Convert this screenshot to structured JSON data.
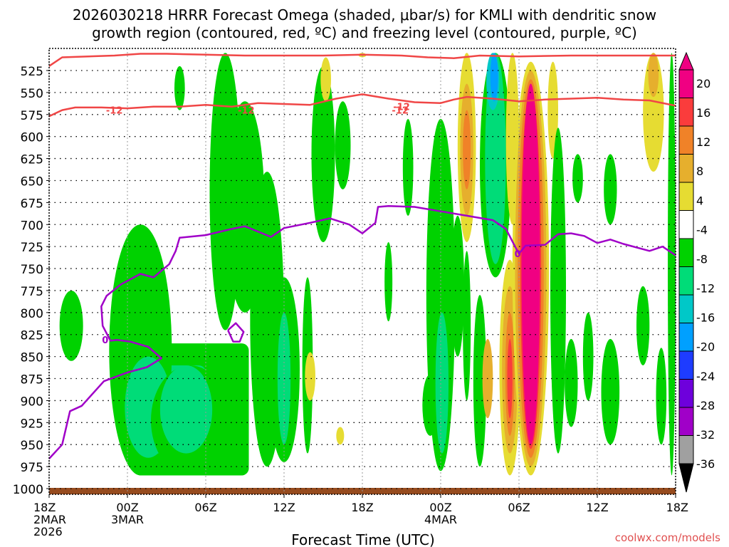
{
  "chart_data": {
    "type": "heatmap",
    "title_line1": "2026030218 HRRR Forecast Omega (shaded, μbar/s) for KMLI with dendritic snow",
    "title_line2": "growth region (contoured, red, ºC) and freezing level (contoured, purple, ºC)",
    "xlabel": "Forecast Time (UTC)",
    "credit": "coolwx.com/models",
    "xlim_hours": [
      0,
      48
    ],
    "ylim_hpa": [
      1010,
      505
    ],
    "y_ticks": [
      525,
      550,
      575,
      600,
      625,
      650,
      675,
      700,
      725,
      750,
      775,
      800,
      825,
      850,
      875,
      900,
      925,
      950,
      975,
      1000
    ],
    "x_ticks": [
      {
        "hour": 0,
        "lines": [
          "18Z",
          "2MAR",
          "2026"
        ]
      },
      {
        "hour": 6,
        "lines": [
          "00Z",
          "3MAR"
        ]
      },
      {
        "hour": 12,
        "lines": [
          "06Z"
        ]
      },
      {
        "hour": 18,
        "lines": [
          "12Z"
        ]
      },
      {
        "hour": 24,
        "lines": [
          "18Z"
        ]
      },
      {
        "hour": 30,
        "lines": [
          "00Z",
          "4MAR"
        ]
      },
      {
        "hour": 36,
        "lines": [
          "06Z"
        ]
      },
      {
        "hour": 42,
        "lines": [
          "12Z"
        ]
      },
      {
        "hour": 48,
        "lines": [
          "18Z"
        ]
      }
    ],
    "colorbar": {
      "levels": [
        -36,
        -32,
        -28,
        -24,
        -20,
        -16,
        -12,
        -8,
        -4,
        4,
        8,
        12,
        16,
        20
      ],
      "labels": [
        "20",
        "16",
        "12",
        "8",
        "4",
        "-4",
        "-8",
        "-12",
        "-16",
        "-20",
        "-24",
        "-28",
        "-32",
        "-36"
      ],
      "colors": [
        "#a0a0a0",
        "#a000c8",
        "#6e00dc",
        "#1e3cff",
        "#00a0ff",
        "#00c8c8",
        "#00dc78",
        "#00d200",
        "#ffffff",
        "#e6dc32",
        "#e6af2d",
        "#f08228",
        "#fa3c3c",
        "#f00082"
      ]
    },
    "snow_growth_contour": {
      "label": "-12",
      "points": [
        [
          0,
          577
        ],
        [
          1,
          570
        ],
        [
          2,
          567
        ],
        [
          4,
          567
        ],
        [
          6,
          568
        ],
        [
          8,
          566
        ],
        [
          10,
          566
        ],
        [
          12,
          564
        ],
        [
          14,
          566
        ],
        [
          16,
          562
        ],
        [
          18,
          563
        ],
        [
          20,
          564
        ],
        [
          22,
          557
        ],
        [
          24,
          552
        ],
        [
          26,
          557
        ],
        [
          28,
          561
        ],
        [
          30,
          562
        ],
        [
          31,
          558
        ],
        [
          32,
          555
        ],
        [
          34,
          557
        ],
        [
          36,
          560
        ],
        [
          38,
          558
        ],
        [
          40,
          557
        ],
        [
          42,
          556
        ],
        [
          44,
          558
        ],
        [
          46,
          559
        ],
        [
          48,
          565
        ]
      ]
    },
    "snow_growth_top_contour": {
      "points": [
        [
          0,
          520
        ],
        [
          1,
          510
        ],
        [
          3,
          509
        ],
        [
          5,
          508
        ],
        [
          7,
          506
        ],
        [
          9,
          506
        ],
        [
          12,
          507
        ],
        [
          15,
          508
        ],
        [
          18,
          508
        ],
        [
          21,
          508
        ],
        [
          24,
          507
        ],
        [
          27,
          508
        ],
        [
          29,
          510
        ],
        [
          31,
          511
        ],
        [
          33,
          508
        ],
        [
          36,
          509
        ],
        [
          40,
          508
        ],
        [
          44,
          508
        ],
        [
          48,
          508
        ]
      ]
    },
    "freezing_level_contour": {
      "label": "0",
      "points": [
        [
          0,
          966
        ],
        [
          1,
          950
        ],
        [
          1.6,
          912
        ],
        [
          2.5,
          906
        ],
        [
          4.2,
          878
        ],
        [
          6,
          868
        ],
        [
          7.5,
          862
        ],
        [
          8.6,
          852
        ],
        [
          7.6,
          839
        ],
        [
          6.2,
          833
        ],
        [
          5.2,
          831
        ],
        [
          4.7,
          832
        ],
        [
          4.1,
          815
        ],
        [
          4,
          793
        ],
        [
          4.4,
          781
        ],
        [
          5.5,
          768
        ],
        [
          7,
          756
        ],
        [
          8,
          760
        ],
        [
          9.2,
          745
        ],
        [
          9.7,
          730
        ],
        [
          10,
          715
        ],
        [
          12,
          712
        ],
        [
          14,
          705
        ],
        [
          15,
          702
        ],
        [
          16,
          708
        ],
        [
          17,
          714
        ],
        [
          18,
          704
        ],
        [
          20,
          698
        ],
        [
          21.5,
          693
        ],
        [
          23,
          700
        ],
        [
          24,
          710
        ],
        [
          25,
          698
        ],
        [
          25.2,
          680
        ],
        [
          26,
          679
        ],
        [
          28,
          680
        ],
        [
          30,
          685
        ],
        [
          32,
          690
        ],
        [
          34,
          695
        ],
        [
          35,
          705
        ],
        [
          35.7,
          725
        ],
        [
          36,
          733
        ],
        [
          36.5,
          724
        ],
        [
          38,
          723
        ],
        [
          39,
          711
        ],
        [
          40,
          710
        ],
        [
          41,
          713
        ],
        [
          42,
          721
        ],
        [
          43,
          717
        ],
        [
          44,
          722
        ],
        [
          46,
          730
        ],
        [
          47,
          725
        ],
        [
          48,
          735
        ]
      ]
    },
    "freezing_small_loop": {
      "points": [
        [
          13.7,
          820
        ],
        [
          14.3,
          812
        ],
        [
          14.9,
          822
        ],
        [
          14.6,
          833
        ],
        [
          14.1,
          833
        ],
        [
          13.7,
          820
        ]
      ]
    },
    "surface_fill_color": "#964b1e",
    "omega_cells": [
      {
        "hour": 1.7,
        "p_top": 775,
        "p_bot": 855,
        "halfwidth_h": 0.9,
        "value": -5
      },
      {
        "hour": 7.0,
        "p_top": 700,
        "p_bot": 985,
        "halfwidth_h": 2.4,
        "value": -5
      },
      {
        "hour": 7.6,
        "p_top": 850,
        "p_bot": 965,
        "halfwidth_h": 1.8,
        "value": -9
      },
      {
        "hour": 10.8,
        "p_top": 860,
        "p_bot": 985,
        "halfwidth_h": 3.0,
        "value": -5
      },
      {
        "hour": 10.5,
        "p_top": 860,
        "p_bot": 960,
        "halfwidth_h": 2.0,
        "value": -9
      },
      {
        "hour": 10.0,
        "p_top": 520,
        "p_bot": 570,
        "halfwidth_h": 0.4,
        "value": -5
      },
      {
        "hour": 13.5,
        "p_top": 505,
        "p_bot": 820,
        "halfwidth_h": 1.2,
        "value": -5
      },
      {
        "hour": 15.0,
        "p_top": 560,
        "p_bot": 800,
        "halfwidth_h": 1.5,
        "value": -5
      },
      {
        "hour": 16.7,
        "p_top": 640,
        "p_bot": 975,
        "halfwidth_h": 1.3,
        "value": -5
      },
      {
        "hour": 18.0,
        "p_top": 760,
        "p_bot": 970,
        "halfwidth_h": 1.2,
        "value": -5
      },
      {
        "hour": 18.0,
        "p_top": 800,
        "p_bot": 950,
        "halfwidth_h": 0.5,
        "value": -9
      },
      {
        "hour": 19.8,
        "p_top": 760,
        "p_bot": 960,
        "halfwidth_h": 0.4,
        "value": -5
      },
      {
        "hour": 21.0,
        "p_top": 520,
        "p_bot": 720,
        "halfwidth_h": 0.9,
        "value": -5
      },
      {
        "hour": 22.5,
        "p_top": 560,
        "p_bot": 660,
        "halfwidth_h": 0.6,
        "value": -5
      },
      {
        "hour": 21.2,
        "p_top": 510,
        "p_bot": 560,
        "halfwidth_h": 0.4,
        "value": 5
      },
      {
        "hour": 24.0,
        "p_top": 505,
        "p_bot": 510,
        "halfwidth_h": 0.3,
        "value": 5
      },
      {
        "hour": 20.0,
        "p_top": 845,
        "p_bot": 900,
        "halfwidth_h": 0.4,
        "value": 5
      },
      {
        "hour": 22.3,
        "p_top": 930,
        "p_bot": 950,
        "halfwidth_h": 0.3,
        "value": 5
      },
      {
        "hour": 26.0,
        "p_top": 720,
        "p_bot": 810,
        "halfwidth_h": 0.3,
        "value": -5
      },
      {
        "hour": 27.5,
        "p_top": 580,
        "p_bot": 690,
        "halfwidth_h": 0.4,
        "value": -5
      },
      {
        "hour": 29.2,
        "p_top": 870,
        "p_bot": 940,
        "halfwidth_h": 0.6,
        "value": -5
      },
      {
        "hour": 30.0,
        "p_top": 580,
        "p_bot": 980,
        "halfwidth_h": 1.1,
        "value": -5
      },
      {
        "hour": 30.1,
        "p_top": 800,
        "p_bot": 960,
        "halfwidth_h": 0.5,
        "value": -9
      },
      {
        "hour": 31.3,
        "p_top": 690,
        "p_bot": 850,
        "halfwidth_h": 0.5,
        "value": -5
      },
      {
        "hour": 32.0,
        "p_top": 505,
        "p_bot": 720,
        "halfwidth_h": 0.7,
        "value": 5
      },
      {
        "hour": 32.0,
        "p_top": 540,
        "p_bot": 690,
        "halfwidth_h": 0.5,
        "value": 9
      },
      {
        "hour": 32.0,
        "p_top": 570,
        "p_bot": 660,
        "halfwidth_h": 0.3,
        "value": 13
      },
      {
        "hour": 32.0,
        "p_top": 730,
        "p_bot": 900,
        "halfwidth_h": 0.3,
        "value": -5
      },
      {
        "hour": 33.0,
        "p_top": 780,
        "p_bot": 975,
        "halfwidth_h": 0.5,
        "value": -5
      },
      {
        "hour": 33.6,
        "p_top": 830,
        "p_bot": 920,
        "halfwidth_h": 0.4,
        "value": 9
      },
      {
        "hour": 34.2,
        "p_top": 505,
        "p_bot": 760,
        "halfwidth_h": 1.2,
        "value": -5
      },
      {
        "hour": 34.2,
        "p_top": 505,
        "p_bot": 745,
        "halfwidth_h": 0.8,
        "value": -9
      },
      {
        "hour": 34.0,
        "p_top": 505,
        "p_bot": 570,
        "halfwidth_h": 0.5,
        "value": -13
      },
      {
        "hour": 34.1,
        "p_top": 505,
        "p_bot": 560,
        "halfwidth_h": 0.3,
        "value": -17
      },
      {
        "hour": 35.5,
        "p_top": 505,
        "p_bot": 700,
        "halfwidth_h": 0.5,
        "value": 5
      },
      {
        "hour": 35.3,
        "p_top": 740,
        "p_bot": 985,
        "halfwidth_h": 0.8,
        "value": 5
      },
      {
        "hour": 35.3,
        "p_top": 770,
        "p_bot": 960,
        "halfwidth_h": 0.6,
        "value": 9
      },
      {
        "hour": 35.3,
        "p_top": 800,
        "p_bot": 940,
        "halfwidth_h": 0.35,
        "value": 13
      },
      {
        "hour": 35.3,
        "p_top": 830,
        "p_bot": 920,
        "halfwidth_h": 0.2,
        "value": 17
      },
      {
        "hour": 36.9,
        "p_top": 515,
        "p_bot": 985,
        "halfwidth_h": 1.4,
        "value": 5
      },
      {
        "hour": 36.9,
        "p_top": 525,
        "p_bot": 975,
        "halfwidth_h": 1.2,
        "value": 9
      },
      {
        "hour": 36.9,
        "p_top": 535,
        "p_bot": 965,
        "halfwidth_h": 1.0,
        "value": 13
      },
      {
        "hour": 36.9,
        "p_top": 545,
        "p_bot": 955,
        "halfwidth_h": 0.8,
        "value": 17
      },
      {
        "hour": 36.9,
        "p_top": 540,
        "p_bot": 950,
        "halfwidth_h": 0.7,
        "value": 24
      },
      {
        "hour": 38.6,
        "p_top": 515,
        "p_bot": 625,
        "halfwidth_h": 0.4,
        "value": 5
      },
      {
        "hour": 39.0,
        "p_top": 590,
        "p_bot": 960,
        "halfwidth_h": 0.6,
        "value": -5
      },
      {
        "hour": 40.5,
        "p_top": 620,
        "p_bot": 675,
        "halfwidth_h": 0.4,
        "value": -5
      },
      {
        "hour": 40.0,
        "p_top": 830,
        "p_bot": 930,
        "halfwidth_h": 0.5,
        "value": -5
      },
      {
        "hour": 41.3,
        "p_top": 800,
        "p_bot": 900,
        "halfwidth_h": 0.4,
        "value": -5
      },
      {
        "hour": 43.0,
        "p_top": 620,
        "p_bot": 700,
        "halfwidth_h": 0.5,
        "value": -5
      },
      {
        "hour": 43.0,
        "p_top": 830,
        "p_bot": 950,
        "halfwidth_h": 0.7,
        "value": -5
      },
      {
        "hour": 45.5,
        "p_top": 770,
        "p_bot": 860,
        "halfwidth_h": 0.5,
        "value": -5
      },
      {
        "hour": 46.3,
        "p_top": 505,
        "p_bot": 640,
        "halfwidth_h": 0.8,
        "value": 5
      },
      {
        "hour": 46.3,
        "p_top": 505,
        "p_bot": 555,
        "halfwidth_h": 0.4,
        "value": 9
      },
      {
        "hour": 46.9,
        "p_top": 840,
        "p_bot": 950,
        "halfwidth_h": 0.4,
        "value": -5
      },
      {
        "hour": 47.7,
        "p_top": 505,
        "p_bot": 985,
        "halfwidth_h": 0.3,
        "value": -5
      }
    ],
    "omega_blocks": [
      {
        "h1": 6.5,
        "h2": 15.3,
        "p1": 835,
        "p2": 985,
        "value": -5
      },
      {
        "h1": 6.3,
        "h2": 12.0,
        "p1": 860,
        "p2": 960,
        "value": -9
      }
    ]
  }
}
